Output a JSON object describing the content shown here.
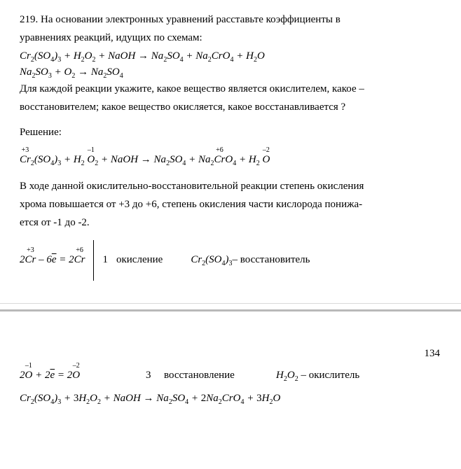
{
  "problem": {
    "number": "219.",
    "intro_a": "На основании электронных уравнений расставьте коэффициенты в",
    "intro_b": "уравнениях реакций, идущих по схемам:",
    "eq1": "Cr₂(SO₄)₃ + H₂O₂ + NaOH → Na₂SO₄ + Na₂CrO₄ + H₂O",
    "eq2": "Na₂SO₃ + O₂ → Na₂SO₄",
    "question_a": "Для каждой реакции укажите, какое вещество является окислителем, какое –",
    "question_b": "восстановителем; какое вещество окисляется, какое восстанавливается ?"
  },
  "solution_label": "Решение:",
  "ox_eq": {
    "cr_top": "+3",
    "o_top_left": "–1",
    "cr2_top": "+6",
    "o_top_right": "–2",
    "eq": "Cr₂(SO₄)₃ + H₂O₂ + NaOH → Na₂SO₄ + Na₂CrO₄ + H₂O"
  },
  "explain_a": "В ходе данной окислительно-восстановительной реакции степень окисления",
  "explain_b": "хрома повышается от +3 до +6, степень окисления части кислорода понижа-",
  "explain_c": "ется от -1 до -2.",
  "half1": {
    "cr_a_top": "+3",
    "cr_b_top": "+6",
    "eq_left": "2Cr – 6ē = 2Cr",
    "factor": "1",
    "label": "окисление",
    "note_formula": "Cr₂(SO₄)₃",
    "note_tail": " – восстановитель"
  },
  "pagenum": "134",
  "half2": {
    "o_a_top": "–1",
    "o_b_top": "–2",
    "eq_left": "2O + 2ē = 2O",
    "factor": "3",
    "label": "восстановление",
    "note_formula": "H₂O₂",
    "note_tail": " – окислитель"
  },
  "balanced": "Cr₂(SO₄)₃ + 3H₂O₂ + NaOH → Na₂SO₄ + 2Na₂CrO₄ + 3H₂O"
}
